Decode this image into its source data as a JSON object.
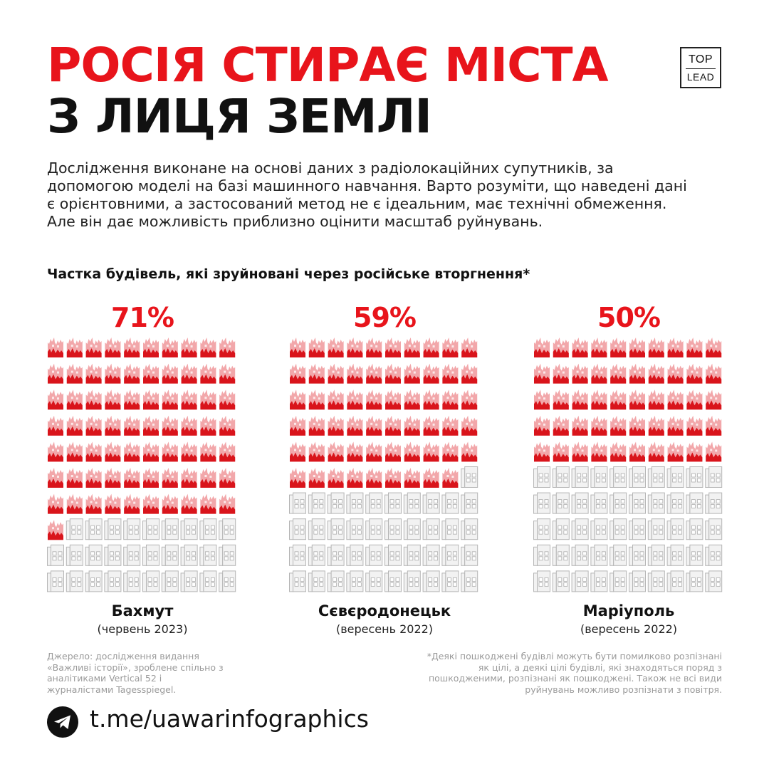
{
  "header": {
    "title_line1": "РОСІЯ СТИРАЄ МІСТА",
    "title_line2": "З ЛИЦЯ ЗЕМЛІ",
    "logo_top": "TOP",
    "logo_bottom": "LEAD"
  },
  "intro": "Дослідження виконане на основі даних з радіолокаційних супутників, за допомогою моделі на базі машинного навчання. Варто розуміти, що наведені дані є орієнтовними, а застосований метод не є ідеальним, має технічні обмеження. Але він дає можливість приблизно оцінити масштаб руйнувань.",
  "chart_data": {
    "type": "waffle",
    "title": "Частка будівель, які зруйновані через російське вторгнення*",
    "grid": {
      "rows": 10,
      "cols": 10
    },
    "series": [
      {
        "city": "Бахмут",
        "date": "(червень 2023)",
        "label": "71%",
        "value": 71
      },
      {
        "city": "Сєвєродонецьк",
        "date": "(вересень 2022)",
        "label": "59%",
        "value": 59
      },
      {
        "city": "Маріуполь",
        "date": "(вересень 2022)",
        "label": "50%",
        "value": 50
      }
    ],
    "colors": {
      "destroyed_light": "#f2a7aa",
      "destroyed_dark": "#d9141b",
      "intact_fill": "#f2f2f2",
      "intact_stroke": "#b5b5b5"
    }
  },
  "footer": {
    "source": "Джерело: дослідження видання «Важливі історії», зроблене спільно з аналітиками Vertical 52 і журналістами Tagesspiegel.",
    "note": "*Деякі пошкоджені будівлі можуть бути помилково розпізнані як цілі, а деякі цілі будівлі, які знаходяться поряд з пошкодженими, розпізнані як пошкоджені. Також не всі види руйнувань можливо розпізнати з повітря.",
    "link": "t.me/uawarinfographics",
    "telegram_icon": "telegram-icon"
  }
}
